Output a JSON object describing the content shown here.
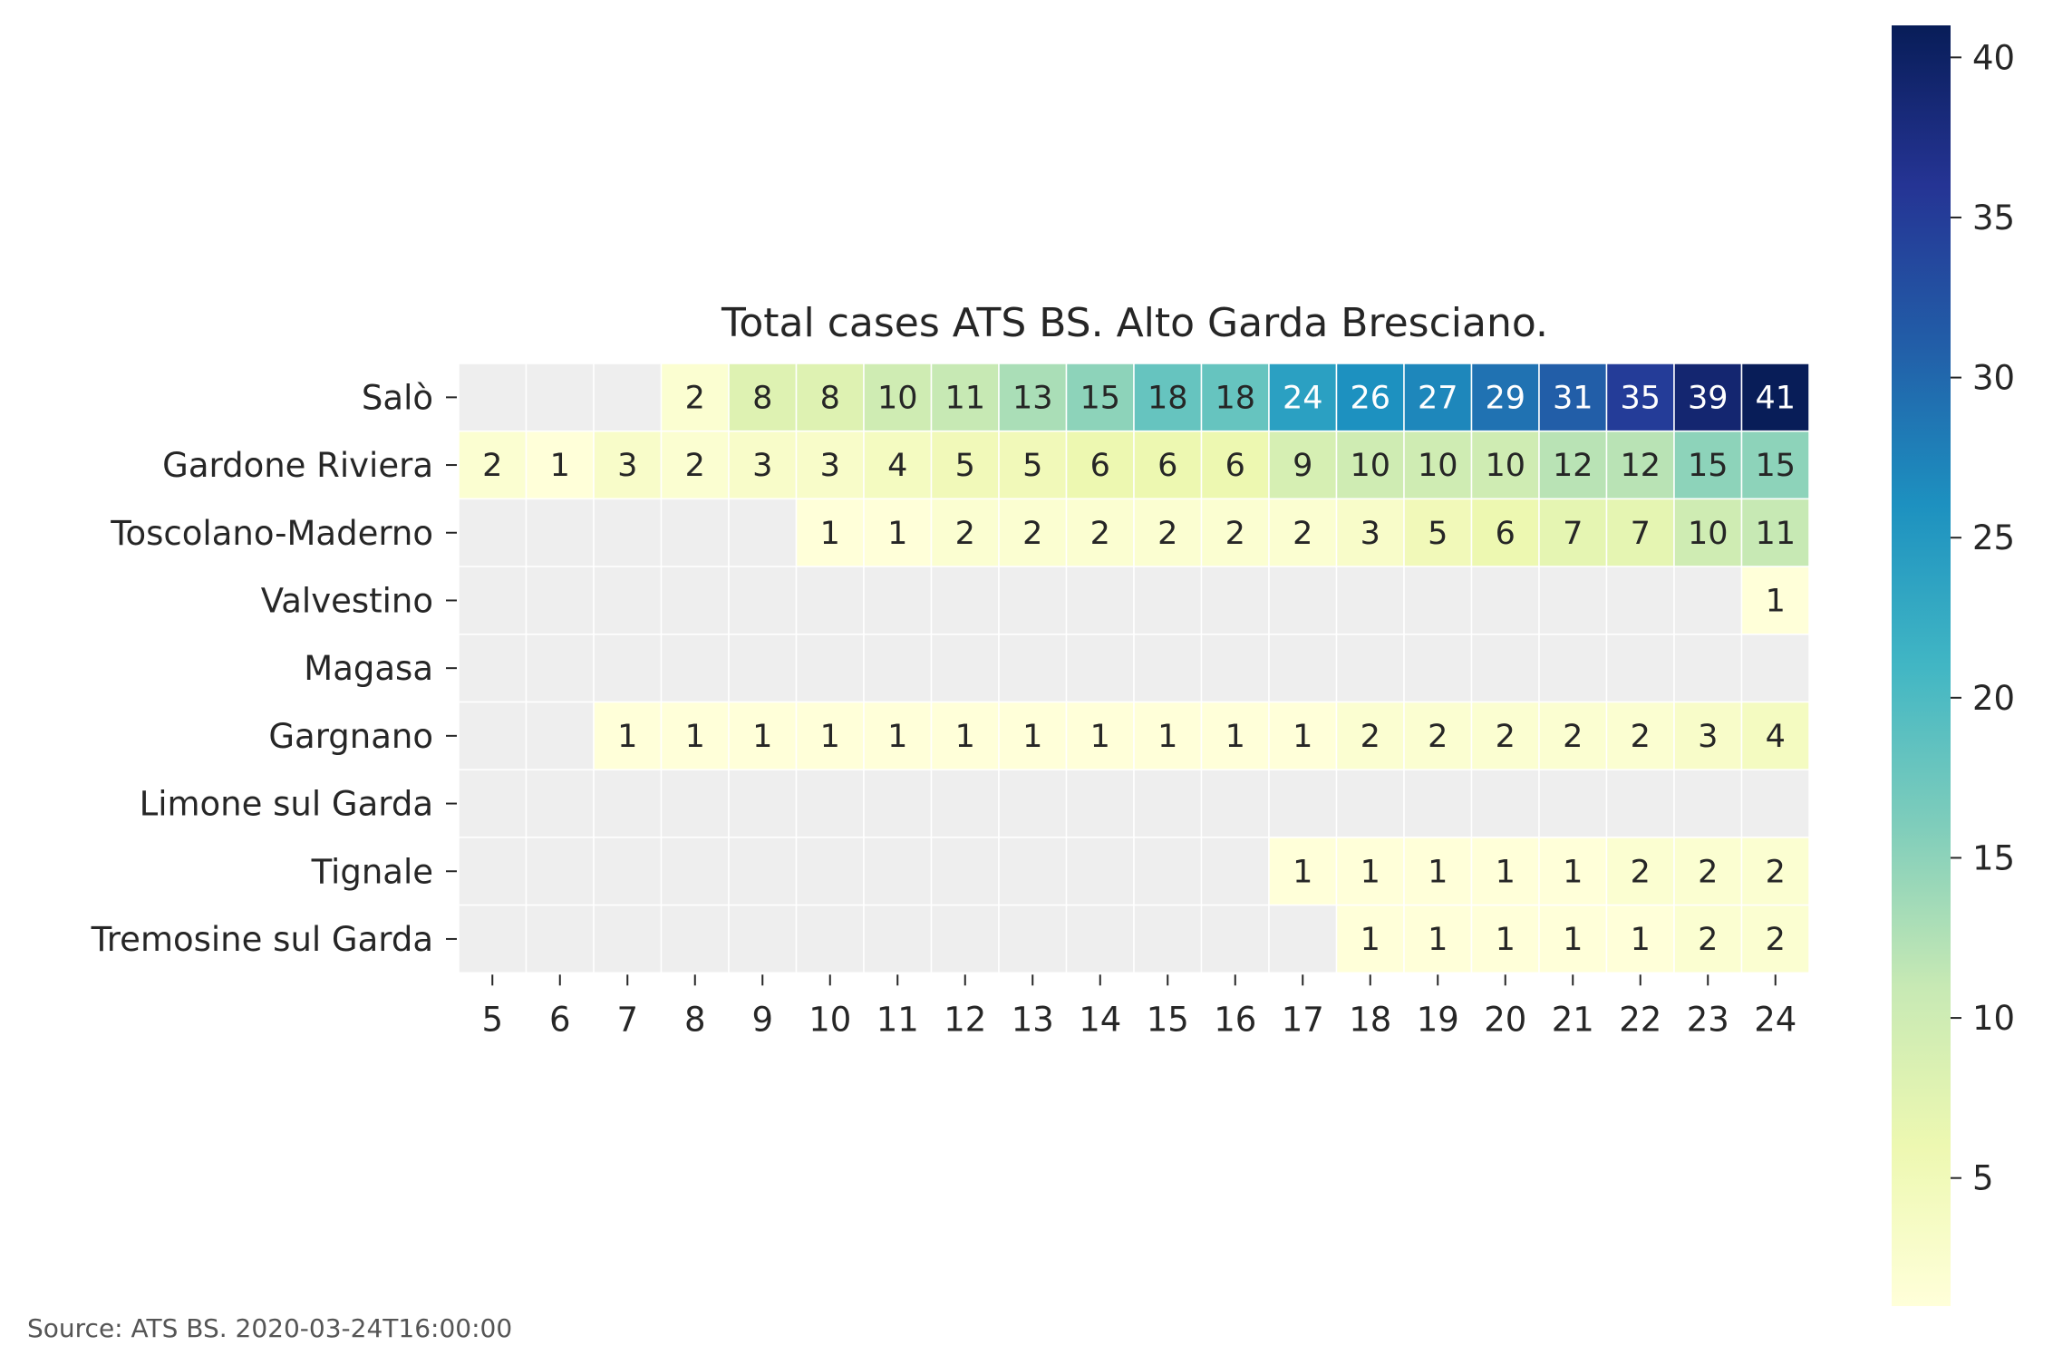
{
  "chart_data": {
    "type": "heatmap",
    "title": "Total cases ATS BS. Alto Garda Bresciano.",
    "x": [
      5,
      6,
      7,
      8,
      9,
      10,
      11,
      12,
      13,
      14,
      15,
      16,
      17,
      18,
      19,
      20,
      21,
      22,
      23,
      24
    ],
    "rows": [
      "Salò",
      "Gardone Riviera",
      "Toscolano-Maderno",
      "Valvestino",
      "Magasa",
      "Gargnano",
      "Limone sul Garda",
      "Tignale",
      "Tremosine sul Garda"
    ],
    "values": [
      [
        null,
        null,
        null,
        2,
        8,
        8,
        10,
        11,
        13,
        15,
        18,
        18,
        24,
        26,
        27,
        29,
        31,
        35,
        39,
        41
      ],
      [
        2,
        1,
        3,
        2,
        3,
        3,
        4,
        5,
        5,
        6,
        6,
        6,
        9,
        10,
        10,
        10,
        12,
        12,
        15,
        15
      ],
      [
        null,
        null,
        null,
        null,
        null,
        1,
        1,
        2,
        2,
        2,
        2,
        2,
        2,
        3,
        5,
        6,
        7,
        7,
        10,
        11
      ],
      [
        null,
        null,
        null,
        null,
        null,
        null,
        null,
        null,
        null,
        null,
        null,
        null,
        null,
        null,
        null,
        null,
        null,
        null,
        null,
        1
      ],
      [
        null,
        null,
        null,
        null,
        null,
        null,
        null,
        null,
        null,
        null,
        null,
        null,
        null,
        null,
        null,
        null,
        null,
        null,
        null,
        null
      ],
      [
        null,
        null,
        1,
        1,
        1,
        1,
        1,
        1,
        1,
        1,
        1,
        1,
        1,
        2,
        2,
        2,
        2,
        2,
        3,
        4
      ],
      [
        null,
        null,
        null,
        null,
        null,
        null,
        null,
        null,
        null,
        null,
        null,
        null,
        null,
        null,
        null,
        null,
        null,
        null,
        null,
        null
      ],
      [
        null,
        null,
        null,
        null,
        null,
        null,
        null,
        null,
        null,
        null,
        null,
        null,
        1,
        1,
        1,
        1,
        1,
        2,
        2,
        2
      ],
      [
        null,
        null,
        null,
        null,
        null,
        null,
        null,
        null,
        null,
        null,
        null,
        null,
        null,
        1,
        1,
        1,
        1,
        1,
        2,
        2
      ]
    ],
    "colorbar": {
      "min": 1,
      "max": 41,
      "ticks": [
        5,
        10,
        15,
        20,
        25,
        30,
        35,
        40
      ],
      "colormap": "YlGnBu"
    },
    "missing_color": "#eeeeee",
    "grid_line_color": "#ffffff"
  },
  "source": "Source: ATS BS. 2020-03-24T16:00:00"
}
